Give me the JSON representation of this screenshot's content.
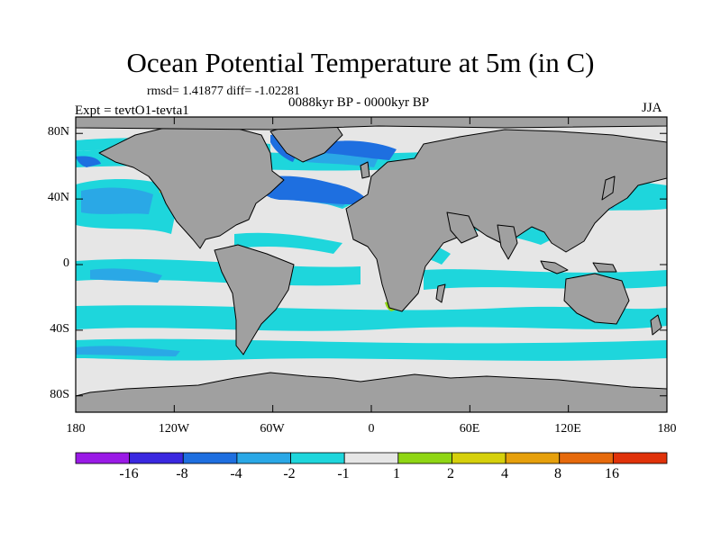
{
  "title": "Ocean Potential Temperature at 5m (in C)",
  "stats_label": "rmsd= 1.41877  diff= -1.02281",
  "period_label": "0088kyr BP - 0000kyr BP",
  "experiment_label": "Expt = tevtO1-tevta1",
  "season_label": "JJA",
  "map": {
    "projection": "cylindrical-equidistant",
    "lon_range": [
      -180,
      180
    ],
    "lat_range": [
      -90,
      90
    ],
    "land_color": "#a0a0a0",
    "lat_ticks": [
      {
        "value": 80,
        "label": "80N"
      },
      {
        "value": 40,
        "label": "40N"
      },
      {
        "value": 0,
        "label": "0"
      },
      {
        "value": -40,
        "label": "40S"
      },
      {
        "value": -80,
        "label": "80S"
      }
    ],
    "lon_ticks": [
      {
        "value": -180,
        "label": "180"
      },
      {
        "value": -120,
        "label": "120W"
      },
      {
        "value": -60,
        "label": "60W"
      },
      {
        "value": 0,
        "label": "0"
      },
      {
        "value": 60,
        "label": "60E"
      },
      {
        "value": 120,
        "label": "120E"
      },
      {
        "value": 180,
        "label": "180"
      }
    ]
  },
  "colorbar": {
    "labels": [
      "-16",
      "-8",
      "-4",
      "-2",
      "-1",
      "1",
      "2",
      "4",
      "8",
      "16"
    ],
    "colors": [
      "#9a1ae6",
      "#3a28e0",
      "#1e6fe0",
      "#2aa8e6",
      "#1ed6dc",
      "#e6e6e6",
      "#8fd614",
      "#d6d00c",
      "#e6a00c",
      "#e66a0c",
      "#e0320a"
    ]
  }
}
